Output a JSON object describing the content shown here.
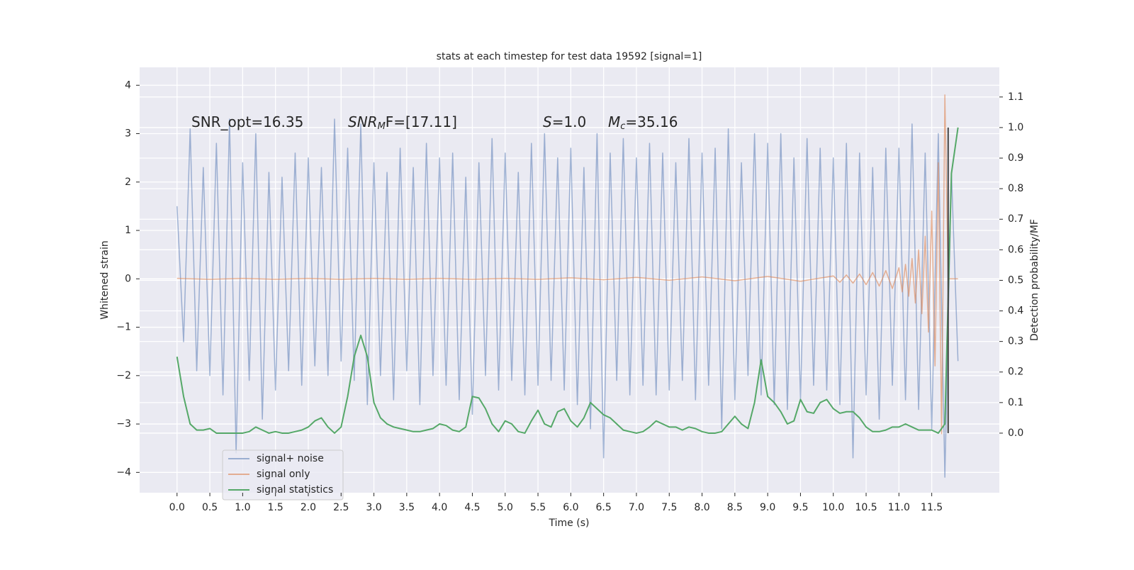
{
  "chart_data": {
    "type": "line",
    "title": "stats at each timestep for test data 19592 [signal=1]",
    "xlabel": "Time (s)",
    "ylabel": "Whitened strain",
    "y2label": "Detection probability/MF",
    "xlim": [
      -0.57,
      12.53
    ],
    "ylim": [
      -4.42,
      4.37
    ],
    "y2lim": [
      -0.195,
      1.197
    ],
    "xticks": [
      {
        "value": 0,
        "label": "0.0"
      },
      0.5,
      {
        "value": 1,
        "label": "1.0"
      },
      1.5,
      {
        "value": 2,
        "label": "2.0"
      },
      2.5,
      {
        "value": 3,
        "label": "3.0"
      },
      3.5,
      {
        "value": 4,
        "label": "4.0"
      },
      4.5,
      {
        "value": 5,
        "label": "5.0"
      },
      5.5,
      {
        "value": 6,
        "label": "6.0"
      },
      6.5,
      {
        "value": 7,
        "label": "7.0"
      },
      7.5,
      {
        "value": 8,
        "label": "8.0"
      },
      8.5,
      {
        "value": 9,
        "label": "9.0"
      },
      9.5,
      {
        "value": 10,
        "label": "10.0"
      },
      10.5,
      {
        "value": 11,
        "label": "11.0"
      },
      11.5
    ],
    "yticks": [
      {
        "value": -4,
        "label": "−4"
      },
      {
        "value": -3,
        "label": "−3"
      },
      {
        "value": -2,
        "label": "−2"
      },
      {
        "value": -1,
        "label": "−1"
      },
      0,
      1,
      2,
      3,
      4
    ],
    "y2ticks": [
      {
        "value": 0,
        "label": "0.0"
      },
      0.1,
      0.2,
      0.3,
      0.4,
      0.5,
      0.6,
      0.7,
      0.8,
      0.9,
      {
        "value": 1,
        "label": "1.0"
      },
      1.1
    ],
    "grid": true,
    "legend_loc": "lower left",
    "annotations": [
      {
        "parts": [
          {
            "text": "SNR_opt=16.35"
          }
        ]
      },
      {
        "parts": [
          {
            "text": "SNR",
            "italic": true
          },
          {
            "text": "M",
            "italic": true,
            "sub": true
          },
          {
            "text": "F=[17.11]"
          }
        ]
      },
      {
        "parts": [
          {
            "text": "S",
            "italic": true
          },
          {
            "text": "=1.0"
          }
        ]
      },
      {
        "parts": [
          {
            "text": "M",
            "italic": true
          },
          {
            "text": "c",
            "italic": true,
            "sub": true
          },
          {
            "text": "=35.16"
          }
        ]
      }
    ],
    "vline": {
      "x": 11.75,
      "y2range": [
        0,
        1
      ],
      "color": "#444444"
    },
    "series": [
      {
        "name": "signal+ noise",
        "color": "#4c72b0",
        "opacity": 0.5,
        "x": [
          0,
          0.1,
          0.2,
          0.3,
          0.4,
          0.5,
          0.6,
          0.7,
          0.8,
          0.9,
          1,
          1.1,
          1.2,
          1.3,
          1.4,
          1.5,
          1.6,
          1.7,
          1.8,
          1.9,
          2,
          2.1,
          2.2,
          2.3,
          2.4,
          2.5,
          2.6,
          2.7,
          2.8,
          2.9,
          3,
          3.1,
          3.2,
          3.3,
          3.4,
          3.5,
          3.6,
          3.7,
          3.8,
          3.9,
          4,
          4.1,
          4.2,
          4.3,
          4.4,
          4.5,
          4.6,
          4.7,
          4.8,
          4.9,
          5,
          5.1,
          5.2,
          5.3,
          5.4,
          5.5,
          5.6,
          5.7,
          5.8,
          5.9,
          6,
          6.1,
          6.2,
          6.3,
          6.4,
          6.5,
          6.6,
          6.7,
          6.8,
          6.9,
          7,
          7.1,
          7.2,
          7.3,
          7.4,
          7.5,
          7.6,
          7.7,
          7.8,
          7.9,
          8,
          8.1,
          8.2,
          8.3,
          8.4,
          8.5,
          8.6,
          8.7,
          8.8,
          8.9,
          9,
          9.1,
          9.2,
          9.3,
          9.4,
          9.5,
          9.6,
          9.7,
          9.8,
          9.9,
          10,
          10.1,
          10.2,
          10.3,
          10.4,
          10.5,
          10.6,
          10.7,
          10.8,
          10.9,
          11,
          11.1,
          11.2,
          11.3,
          11.4,
          11.5,
          11.6,
          11.7,
          11.8,
          11.9
        ],
        "values": [
          1.5,
          -1.3,
          3.1,
          -1.9,
          2.3,
          -2.0,
          2.8,
          -2.4,
          3.3,
          -3.6,
          2.4,
          -2.1,
          3.0,
          -2.9,
          2.2,
          -2.3,
          2.1,
          -1.9,
          2.6,
          -2.2,
          2.5,
          -1.8,
          2.3,
          -2.0,
          3.3,
          -1.7,
          2.7,
          -2.1,
          3.2,
          -2.6,
          2.4,
          -2.0,
          2.2,
          -2.5,
          2.7,
          -1.9,
          2.3,
          -2.6,
          2.8,
          -2.0,
          2.5,
          -2.2,
          2.6,
          -2.5,
          2.1,
          -2.8,
          2.4,
          -2.0,
          2.9,
          -2.3,
          2.6,
          -2.1,
          2.2,
          -2.4,
          2.8,
          -2.2,
          3.0,
          -2.1,
          2.5,
          -2.3,
          2.7,
          -2.6,
          2.3,
          -3.1,
          3.0,
          -3.7,
          2.6,
          -2.1,
          2.9,
          -2.4,
          2.5,
          -2.2,
          2.8,
          -2.4,
          2.6,
          -2.3,
          2.4,
          -2.1,
          2.9,
          -2.5,
          2.6,
          -2.2,
          2.7,
          -3.1,
          3.1,
          -2.5,
          2.4,
          -2.0,
          3.0,
          -2.4,
          2.8,
          -2.6,
          3.0,
          -2.7,
          2.5,
          -2.5,
          2.9,
          -2.2,
          2.7,
          -2.3,
          2.5,
          -2.6,
          2.8,
          -3.7,
          2.6,
          -2.4,
          2.3,
          -2.9,
          2.7,
          -2.2,
          2.7,
          -2.5,
          3.2,
          -2.7,
          2.6,
          -3.1,
          3.0,
          -4.1,
          2.2,
          -1.7
        ]
      },
      {
        "name": "signal only",
        "color": "#dd8452",
        "opacity": 0.6,
        "x": [
          0,
          0.5,
          1,
          1.5,
          2,
          2.5,
          3,
          3.5,
          4,
          4.5,
          5,
          5.5,
          6,
          6.5,
          7,
          7.5,
          8,
          8.5,
          9,
          9.5,
          10,
          10.1,
          10.2,
          10.3,
          10.4,
          10.5,
          10.6,
          10.7,
          10.8,
          10.9,
          11,
          11.05,
          11.1,
          11.15,
          11.2,
          11.25,
          11.3,
          11.35,
          11.4,
          11.45,
          11.5,
          11.55,
          11.6,
          11.65,
          11.7,
          11.75,
          11.9
        ],
        "values": [
          0.01,
          -0.01,
          0.01,
          -0.01,
          0.01,
          -0.01,
          0.01,
          -0.01,
          0.01,
          -0.01,
          0.01,
          -0.01,
          0.02,
          -0.02,
          0.03,
          -0.03,
          0.04,
          -0.04,
          0.05,
          -0.05,
          0.06,
          -0.07,
          0.08,
          -0.09,
          0.1,
          -0.12,
          0.13,
          -0.15,
          0.17,
          -0.2,
          0.23,
          -0.27,
          0.3,
          -0.36,
          0.42,
          -0.5,
          0.6,
          -0.72,
          0.88,
          -1.1,
          1.4,
          -1.8,
          2.4,
          -3.2,
          3.8,
          0,
          0
        ]
      },
      {
        "name": "signal statistics",
        "color": "#55a868",
        "opacity": 1,
        "axis": "y2",
        "x": [
          0,
          0.1,
          0.2,
          0.3,
          0.4,
          0.5,
          0.6,
          0.7,
          0.8,
          0.9,
          1,
          1.1,
          1.2,
          1.3,
          1.4,
          1.5,
          1.6,
          1.7,
          1.8,
          1.9,
          2,
          2.1,
          2.2,
          2.3,
          2.4,
          2.5,
          2.6,
          2.7,
          2.8,
          2.9,
          3,
          3.1,
          3.2,
          3.3,
          3.4,
          3.5,
          3.6,
          3.7,
          3.8,
          3.9,
          4,
          4.1,
          4.2,
          4.3,
          4.4,
          4.5,
          4.6,
          4.7,
          4.8,
          4.9,
          5,
          5.1,
          5.2,
          5.3,
          5.4,
          5.5,
          5.6,
          5.7,
          5.8,
          5.9,
          6,
          6.1,
          6.2,
          6.3,
          6.4,
          6.5,
          6.6,
          6.7,
          6.8,
          6.9,
          7,
          7.1,
          7.2,
          7.3,
          7.4,
          7.5,
          7.6,
          7.7,
          7.8,
          7.9,
          8,
          8.1,
          8.2,
          8.3,
          8.4,
          8.5,
          8.6,
          8.7,
          8.8,
          8.9,
          9,
          9.1,
          9.2,
          9.3,
          9.4,
          9.5,
          9.6,
          9.7,
          9.8,
          9.9,
          10,
          10.1,
          10.2,
          10.3,
          10.4,
          10.5,
          10.6,
          10.7,
          10.8,
          10.9,
          11,
          11.1,
          11.2,
          11.3,
          11.4,
          11.5,
          11.6,
          11.7,
          11.8,
          11.9
        ],
        "values": [
          0.25,
          0.12,
          0.03,
          0.01,
          0.01,
          0.015,
          0,
          0,
          0,
          0,
          0,
          0.005,
          0.02,
          0.01,
          0,
          0.005,
          0,
          0,
          0.005,
          0.01,
          0.02,
          0.04,
          0.05,
          0.02,
          0,
          0.02,
          0.12,
          0.25,
          0.32,
          0.25,
          0.1,
          0.05,
          0.03,
          0.02,
          0.015,
          0.01,
          0.005,
          0.005,
          0.01,
          0.015,
          0.03,
          0.025,
          0.01,
          0.005,
          0.02,
          0.12,
          0.115,
          0.08,
          0.03,
          0.005,
          0.04,
          0.03,
          0.005,
          0,
          0.04,
          0.075,
          0.03,
          0.02,
          0.07,
          0.08,
          0.04,
          0.02,
          0.05,
          0.1,
          0.08,
          0.06,
          0.05,
          0.03,
          0.01,
          0.005,
          0,
          0.005,
          0.02,
          0.04,
          0.03,
          0.02,
          0.02,
          0.01,
          0.02,
          0.015,
          0.005,
          0,
          0,
          0.005,
          0.03,
          0.055,
          0.03,
          0.015,
          0.1,
          0.24,
          0.12,
          0.1,
          0.07,
          0.03,
          0.04,
          0.11,
          0.07,
          0.065,
          0.1,
          0.11,
          0.08,
          0.065,
          0.07,
          0.07,
          0.05,
          0.02,
          0.005,
          0.005,
          0.01,
          0.02,
          0.02,
          0.03,
          0.02,
          0.01,
          0.01,
          0.01,
          0,
          0.03,
          0.85,
          1.0
        ]
      }
    ]
  }
}
